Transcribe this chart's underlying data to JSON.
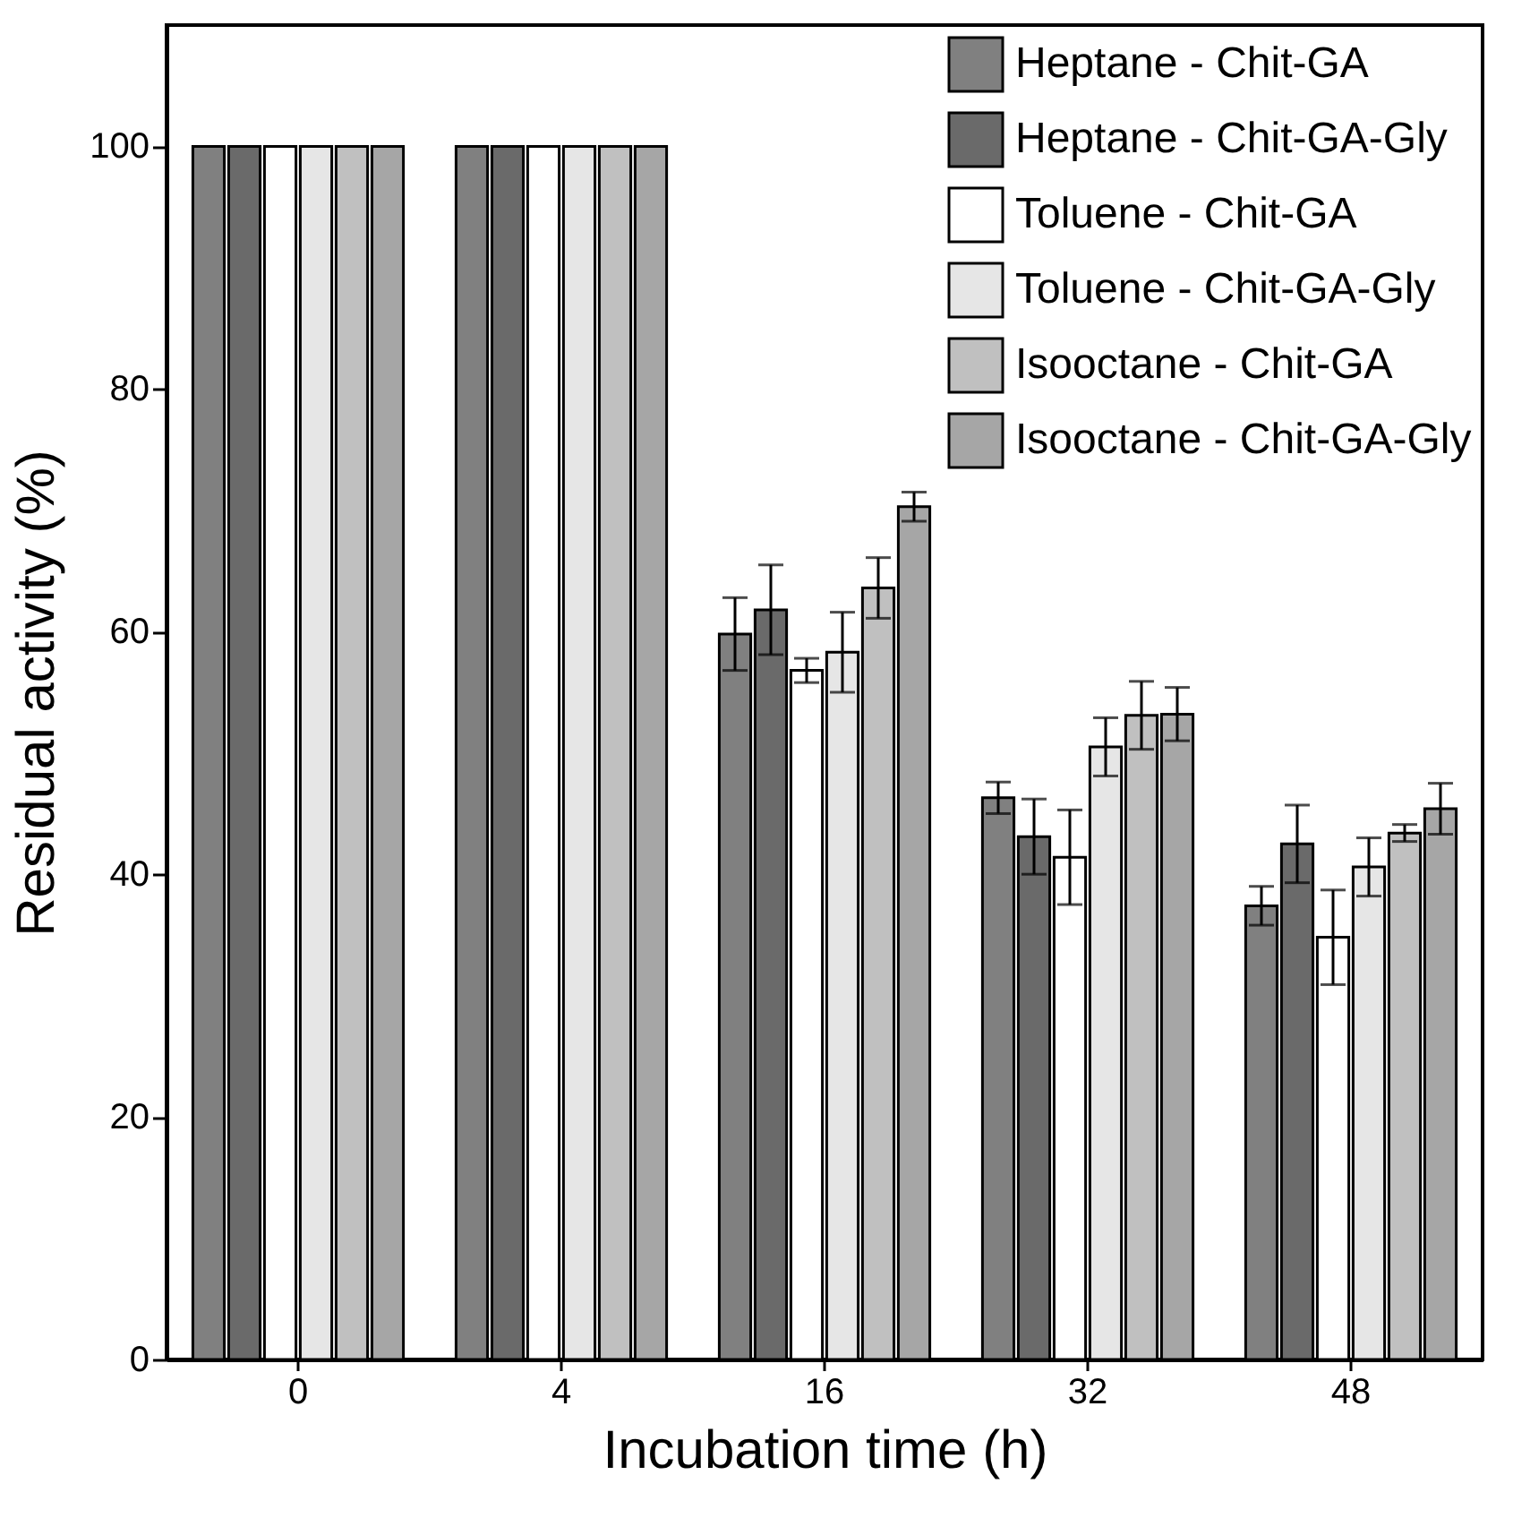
{
  "chart_data": {
    "type": "bar",
    "xlabel": "Incubation time (h)",
    "ylabel": "Residual activity (%)",
    "categories": [
      "0",
      "4",
      "16",
      "32",
      "48"
    ],
    "series": [
      {
        "name": "Heptane - Chit-GA",
        "color": "#808080",
        "values": [
          100,
          100,
          59.8,
          46.3,
          37.4
        ],
        "errors": [
          null,
          null,
          3.0,
          1.3,
          1.6
        ]
      },
      {
        "name": "Heptane - Chit-GA-Gly",
        "color": "#6a6a6a",
        "values": [
          100,
          100,
          61.8,
          43.1,
          42.5
        ],
        "errors": [
          null,
          null,
          3.7,
          3.1,
          3.2
        ]
      },
      {
        "name": "Toluene - Chit-GA",
        "color": "#ffffff",
        "values": [
          100,
          100,
          56.8,
          41.4,
          34.8
        ],
        "errors": [
          null,
          null,
          1.0,
          3.9,
          3.9
        ]
      },
      {
        "name": "Toluene - Chit-GA-Gly",
        "color": "#e6e6e6",
        "values": [
          100,
          100,
          58.3,
          50.5,
          40.6
        ],
        "errors": [
          null,
          null,
          3.3,
          2.4,
          2.4
        ]
      },
      {
        "name": "Isooctane - Chit-GA",
        "color": "#c0c0c0",
        "values": [
          100,
          100,
          63.6,
          53.1,
          43.4
        ],
        "errors": [
          null,
          null,
          2.5,
          2.8,
          0.7
        ]
      },
      {
        "name": "Isooctane - Chit-GA-Gly",
        "color": "#a6a6a6",
        "values": [
          100,
          100,
          70.3,
          53.2,
          45.4
        ],
        "errors": [
          null,
          null,
          1.2,
          2.2,
          2.1
        ]
      }
    ],
    "ylim": [
      0,
      110
    ],
    "yticks": [
      0,
      20,
      40,
      60,
      80,
      100
    ],
    "legend": "top right"
  }
}
